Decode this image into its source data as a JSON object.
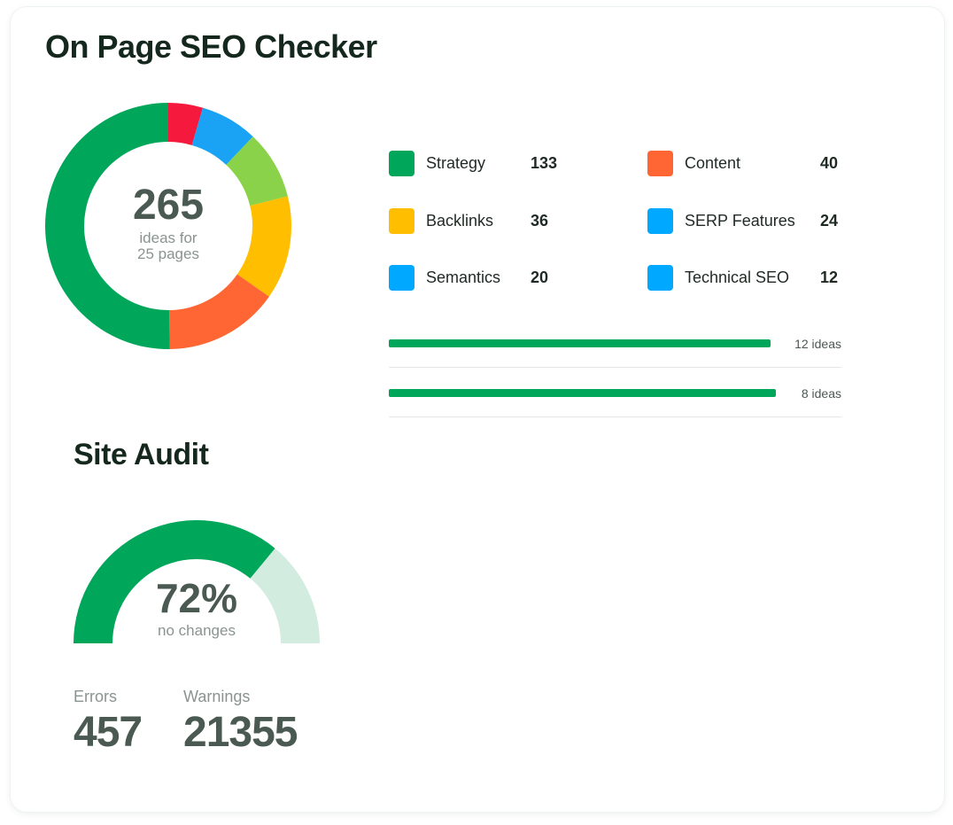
{
  "seo_checker": {
    "title": "On Page SEO Checker",
    "total": "265",
    "subtitle_line1": "ideas for",
    "subtitle_line2": "25 pages",
    "idea_rows": [
      {
        "label": "12 ideas",
        "value": 12
      },
      {
        "label": "8 ideas",
        "value": 8
      }
    ]
  },
  "chart_data": [
    {
      "type": "pie",
      "title": "",
      "categories": [
        "Strategy",
        "Content",
        "Backlinks",
        "SERP Features",
        "Semantics",
        "Technical SEO"
      ],
      "values": [
        133,
        40,
        36,
        24,
        20,
        12
      ],
      "display_values": [
        "133",
        "40",
        "36",
        "24",
        "20",
        "12"
      ],
      "colors": [
        "#00a65a",
        "#ff6633",
        "#ffbf00",
        "#8fd14f",
        "#00a8ff",
        "#f0183e"
      ],
      "donut_colors": [
        "#00a65a",
        "#ff6633",
        "#ffbf00",
        "#8ad24a",
        "#1aa3f5",
        "#f5193e"
      ],
      "donut_order": [
        5,
        4,
        3,
        2,
        1,
        0
      ],
      "legend_swatch_colors": [
        "#00a65a",
        "#ff6633",
        "#ffbf00",
        "#00a8ff",
        "#00a8ff",
        "#00a8ff"
      ]
    },
    {
      "type": "gauge",
      "title": "Site Audit",
      "value": 72,
      "max": 100,
      "display_value": "72%",
      "caption": "no changes",
      "colors": {
        "fill": "#00a65a",
        "track": "#d2ecdf"
      }
    }
  ],
  "site_audit": {
    "title": "Site Audit",
    "gauge_text": "72%",
    "gauge_caption": "no changes",
    "errors_label": "Errors",
    "errors_value": "457",
    "warnings_label": "Warnings",
    "warnings_value": "21355"
  }
}
